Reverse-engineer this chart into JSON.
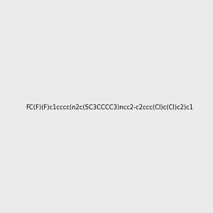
{
  "background_color": "#ebebeb",
  "title": "",
  "atoms": {
    "S": {
      "color": "#cccc00",
      "label": "S"
    },
    "N": {
      "color": "#0000ff",
      "label": "N"
    },
    "Cl": {
      "color": "#00cc00",
      "label": "Cl"
    },
    "F": {
      "color": "#ff00ff",
      "label": "F"
    }
  },
  "smiles": "FC(F)(F)c1cccc(n2c(SC3CCCC3)ncc2-c2ccc(Cl)c(Cl)c2)c1"
}
